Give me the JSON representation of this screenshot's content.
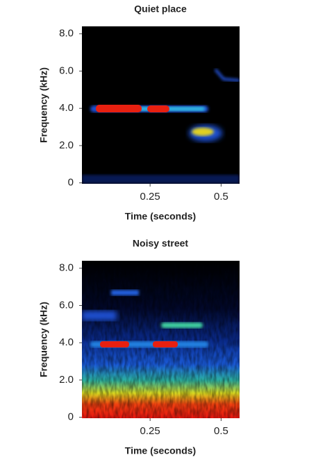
{
  "chart_data": [
    {
      "type": "spectrogram",
      "title": "Quiet place",
      "xlabel": "Time (seconds)",
      "ylabel": "Frequency (kHz)",
      "xlim": [
        0.01,
        0.565
      ],
      "xticks": [
        0.25,
        0.5
      ],
      "ylim": [
        -0.05,
        8.4
      ],
      "yticks": [
        0,
        {
          "value": 2,
          "label": "2.0"
        },
        {
          "value": 4,
          "label": "4.0"
        },
        {
          "value": 6,
          "label": "6.0"
        },
        {
          "value": 8,
          "label": "8.0"
        }
      ]
    },
    {
      "type": "spectrogram",
      "title": "Noisy street",
      "xlabel": "Time (seconds)",
      "ylabel": "Frequency (kHz)",
      "xlim": [
        0.01,
        0.565
      ],
      "xticks": [
        0.25,
        0.5
      ],
      "ylim": [
        -0.05,
        8.4
      ],
      "yticks": [
        0,
        {
          "value": 2,
          "label": "2.0"
        },
        {
          "value": 4,
          "label": "4.0"
        },
        {
          "value": 6,
          "label": "6.0"
        },
        {
          "value": 8,
          "label": "8.0"
        }
      ]
    }
  ]
}
